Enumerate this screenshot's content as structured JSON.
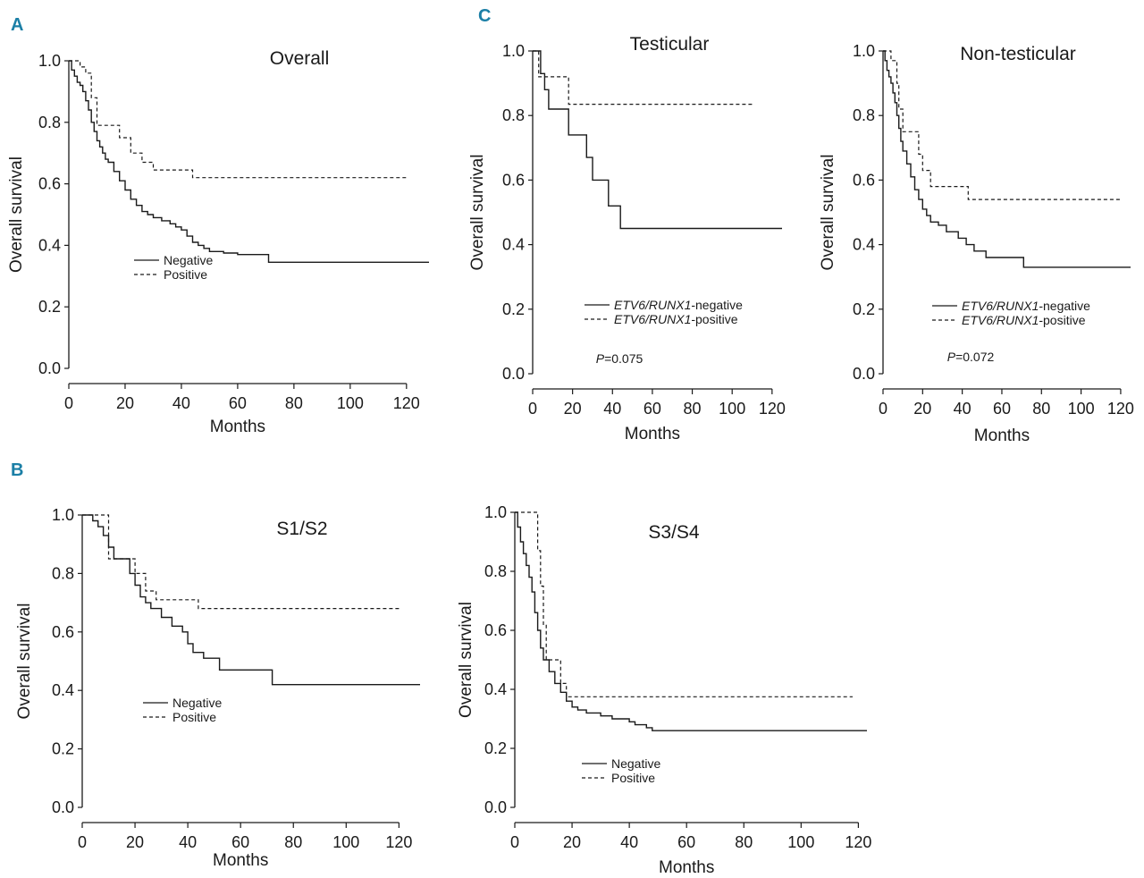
{
  "panel_labels": [
    "A",
    "B",
    "C"
  ],
  "colors": {
    "panel_letter": "#1b7fa6",
    "ink": "#1a1a1a"
  },
  "chart_data": [
    {
      "id": "overall",
      "panel": "A",
      "type": "line",
      "title": "Overall",
      "xlabel": "Months",
      "ylabel": "Overall survival",
      "xlim": [
        0,
        128
      ],
      "ylim": [
        0,
        1
      ],
      "xticks": [
        0,
        20,
        40,
        60,
        80,
        100,
        120
      ],
      "yticks": [
        "0.0",
        "0.2",
        "0.4",
        "0.6",
        "0.8",
        "1.0"
      ],
      "legend_style": "short",
      "pvalue": "",
      "series": [
        {
          "name": "Negative",
          "dash": "solid",
          "x": [
            0,
            1,
            2,
            3,
            4,
            5,
            6,
            7,
            8,
            9,
            10,
            11,
            12,
            13,
            14,
            16,
            18,
            20,
            22,
            24,
            26,
            28,
            30,
            33,
            36,
            38,
            40,
            42,
            44,
            46,
            48,
            50,
            55,
            60,
            65,
            71,
            75,
            90,
            110,
            128
          ],
          "y": [
            1.0,
            0.97,
            0.95,
            0.93,
            0.92,
            0.9,
            0.87,
            0.84,
            0.8,
            0.77,
            0.74,
            0.72,
            0.7,
            0.68,
            0.67,
            0.64,
            0.61,
            0.58,
            0.55,
            0.53,
            0.51,
            0.5,
            0.49,
            0.48,
            0.47,
            0.46,
            0.45,
            0.43,
            0.41,
            0.4,
            0.39,
            0.38,
            0.375,
            0.37,
            0.37,
            0.345,
            0.345,
            0.345,
            0.345,
            0.345
          ]
        },
        {
          "name": "Positive",
          "dash": "dashed",
          "x": [
            0,
            4,
            6,
            8,
            10,
            16,
            18,
            22,
            26,
            30,
            44,
            60,
            90,
            120
          ],
          "y": [
            1.0,
            0.98,
            0.96,
            0.88,
            0.79,
            0.79,
            0.75,
            0.7,
            0.67,
            0.645,
            0.62,
            0.62,
            0.62,
            0.62
          ]
        }
      ]
    },
    {
      "id": "s1s2",
      "panel": "B",
      "type": "line",
      "title": "S1/S2",
      "xlabel": "Months",
      "ylabel": "Overall survival",
      "xlim": [
        0,
        128
      ],
      "ylim": [
        0,
        1
      ],
      "xticks": [
        0,
        20,
        40,
        60,
        80,
        100,
        120
      ],
      "yticks": [
        "0.0",
        "0.2",
        "0.4",
        "0.6",
        "0.8",
        "1.0"
      ],
      "legend_style": "short",
      "pvalue": "",
      "series": [
        {
          "name": "Negative",
          "dash": "solid",
          "x": [
            0,
            4,
            6,
            8,
            10,
            12,
            18,
            20,
            22,
            24,
            26,
            30,
            34,
            38,
            40,
            42,
            46,
            52,
            60,
            72,
            128
          ],
          "y": [
            1.0,
            0.98,
            0.96,
            0.93,
            0.89,
            0.85,
            0.8,
            0.76,
            0.72,
            0.7,
            0.68,
            0.65,
            0.62,
            0.6,
            0.56,
            0.53,
            0.51,
            0.47,
            0.47,
            0.42,
            0.42
          ]
        },
        {
          "name": "Positive",
          "dash": "dashed",
          "x": [
            0,
            10,
            20,
            24,
            28,
            44,
            120
          ],
          "y": [
            1.0,
            0.85,
            0.8,
            0.74,
            0.71,
            0.68,
            0.68
          ]
        }
      ]
    },
    {
      "id": "s3s4",
      "panel": "B",
      "type": "line",
      "title": "S3/S4",
      "xlabel": "Months",
      "ylabel": "Overall survival",
      "xlim": [
        0,
        123
      ],
      "ylim": [
        0,
        1
      ],
      "xticks": [
        0,
        20,
        40,
        60,
        80,
        100,
        120
      ],
      "yticks": [
        "0.0",
        "0.2",
        "0.4",
        "0.6",
        "0.8",
        "1.0"
      ],
      "legend_style": "short",
      "pvalue": "",
      "series": [
        {
          "name": "Negative",
          "dash": "solid",
          "x": [
            0,
            1,
            2,
            3,
            4,
            5,
            6,
            7,
            8,
            9,
            10,
            12,
            14,
            16,
            18,
            20,
            22,
            25,
            30,
            34,
            40,
            42,
            46,
            48,
            60,
            90,
            123
          ],
          "y": [
            1.0,
            0.95,
            0.9,
            0.86,
            0.82,
            0.78,
            0.73,
            0.66,
            0.6,
            0.54,
            0.5,
            0.46,
            0.42,
            0.39,
            0.36,
            0.34,
            0.33,
            0.32,
            0.31,
            0.3,
            0.29,
            0.28,
            0.27,
            0.26,
            0.26,
            0.26,
            0.26
          ]
        },
        {
          "name": "Positive",
          "dash": "dashed",
          "x": [
            0,
            8,
            9,
            10,
            11,
            16,
            18,
            60,
            118
          ],
          "y": [
            1.0,
            0.87,
            0.75,
            0.62,
            0.5,
            0.42,
            0.375,
            0.375,
            0.375
          ]
        }
      ]
    },
    {
      "id": "testicular",
      "panel": "C",
      "type": "line",
      "title": "Testicular",
      "xlabel": "Months",
      "ylabel": "Overall survival",
      "xlim": [
        0,
        125
      ],
      "ylim": [
        0,
        1
      ],
      "xticks": [
        0,
        20,
        40,
        60,
        80,
        100,
        120
      ],
      "yticks": [
        "0.0",
        "0.2",
        "0.4",
        "0.6",
        "0.8",
        "1.0"
      ],
      "legend_style": "gene",
      "pvalue": "0.075",
      "series": [
        {
          "name": "ETV6/RUNX1-negative",
          "gene": "ETV6/RUNX1",
          "suffix": "-negative",
          "dash": "solid",
          "x": [
            0,
            4,
            6,
            8,
            18,
            27,
            30,
            38,
            44,
            60,
            125
          ],
          "y": [
            1.0,
            0.93,
            0.88,
            0.82,
            0.74,
            0.67,
            0.6,
            0.52,
            0.45,
            0.45,
            0.45
          ]
        },
        {
          "name": "ETV6/RUNX1-positive",
          "gene": "ETV6/RUNX1",
          "suffix": "-positive",
          "dash": "dashed",
          "x": [
            0,
            3,
            18,
            60,
            111
          ],
          "y": [
            1.0,
            0.92,
            0.835,
            0.835,
            0.835
          ]
        }
      ]
    },
    {
      "id": "nontesticular",
      "panel": "C",
      "type": "line",
      "title": "Non-testicular",
      "xlabel": "Months",
      "ylabel": "Overall survival",
      "xlim": [
        0,
        125
      ],
      "ylim": [
        0,
        1
      ],
      "xticks": [
        0,
        20,
        40,
        60,
        80,
        100,
        120
      ],
      "yticks": [
        "0.0",
        "0.2",
        "0.4",
        "0.6",
        "0.8",
        "1.0"
      ],
      "legend_style": "gene",
      "pvalue": "0.072",
      "series": [
        {
          "name": "ETV6/RUNX1-negative",
          "gene": "ETV6/RUNX1",
          "suffix": "-negative",
          "dash": "solid",
          "x": [
            0,
            1,
            2,
            3,
            4,
            5,
            6,
            7,
            8,
            9,
            10,
            12,
            14,
            16,
            18,
            20,
            22,
            24,
            28,
            32,
            38,
            42,
            46,
            52,
            60,
            71,
            90,
            125
          ],
          "y": [
            1.0,
            0.97,
            0.94,
            0.92,
            0.9,
            0.87,
            0.84,
            0.8,
            0.76,
            0.72,
            0.69,
            0.65,
            0.61,
            0.57,
            0.54,
            0.51,
            0.49,
            0.47,
            0.46,
            0.44,
            0.42,
            0.4,
            0.38,
            0.36,
            0.36,
            0.33,
            0.33,
            0.33
          ]
        },
        {
          "name": "ETV6/RUNX1-positive",
          "gene": "ETV6/RUNX1",
          "suffix": "-positive",
          "dash": "dashed",
          "x": [
            0,
            4,
            7,
            8,
            10,
            15,
            18,
            20,
            24,
            42,
            43,
            60,
            120
          ],
          "y": [
            1.0,
            0.97,
            0.9,
            0.82,
            0.75,
            0.75,
            0.68,
            0.63,
            0.58,
            0.58,
            0.54,
            0.54,
            0.54
          ]
        }
      ]
    }
  ],
  "p_prefix": "P",
  "p_equals": "="
}
